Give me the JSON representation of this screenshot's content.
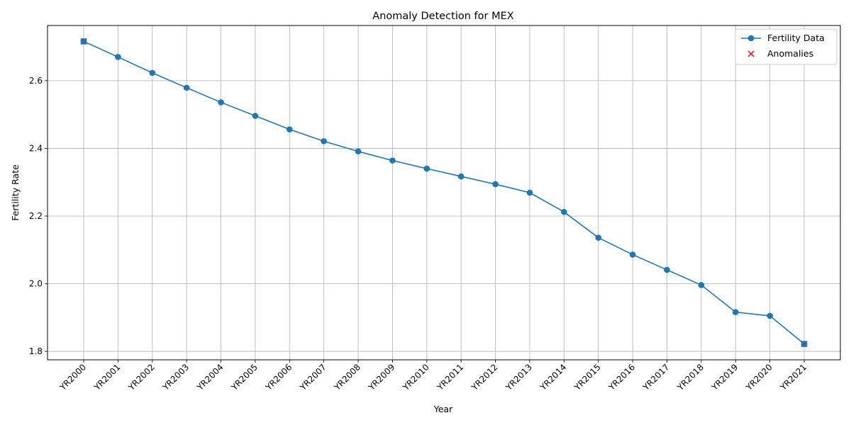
{
  "chart_data": {
    "type": "line",
    "title": "Anomaly Detection for MEX",
    "xlabel": "Year",
    "ylabel": "Fertility Rate",
    "categories": [
      "YR2000",
      "YR2001",
      "YR2002",
      "YR2003",
      "YR2004",
      "YR2005",
      "YR2006",
      "YR2007",
      "YR2008",
      "YR2009",
      "YR2010",
      "YR2011",
      "YR2012",
      "YR2013",
      "YR2014",
      "YR2015",
      "YR2016",
      "YR2017",
      "YR2018",
      "YR2019",
      "YR2020",
      "YR2021"
    ],
    "series": [
      {
        "name": "Fertility Data",
        "color": "#1f77b4",
        "marker": "circle",
        "values": [
          2.716,
          2.67,
          2.623,
          2.579,
          2.536,
          2.496,
          2.456,
          2.421,
          2.391,
          2.364,
          2.34,
          2.317,
          2.294,
          2.269,
          2.212,
          2.136,
          2.086,
          2.041,
          1.996,
          1.916,
          1.905,
          1.822
        ]
      }
    ],
    "anomalies": {
      "name": "Anomalies",
      "color": "#ff0000",
      "marker": "x",
      "points": [
        {
          "x": "YR2000",
          "y": 2.716
        },
        {
          "x": "YR2021",
          "y": 1.822
        }
      ]
    },
    "ylim": [
      1.775,
      2.763
    ],
    "yticks": [
      1.8,
      2.0,
      2.2,
      2.4,
      2.6
    ],
    "grid": true,
    "legend_position": "top-right"
  }
}
